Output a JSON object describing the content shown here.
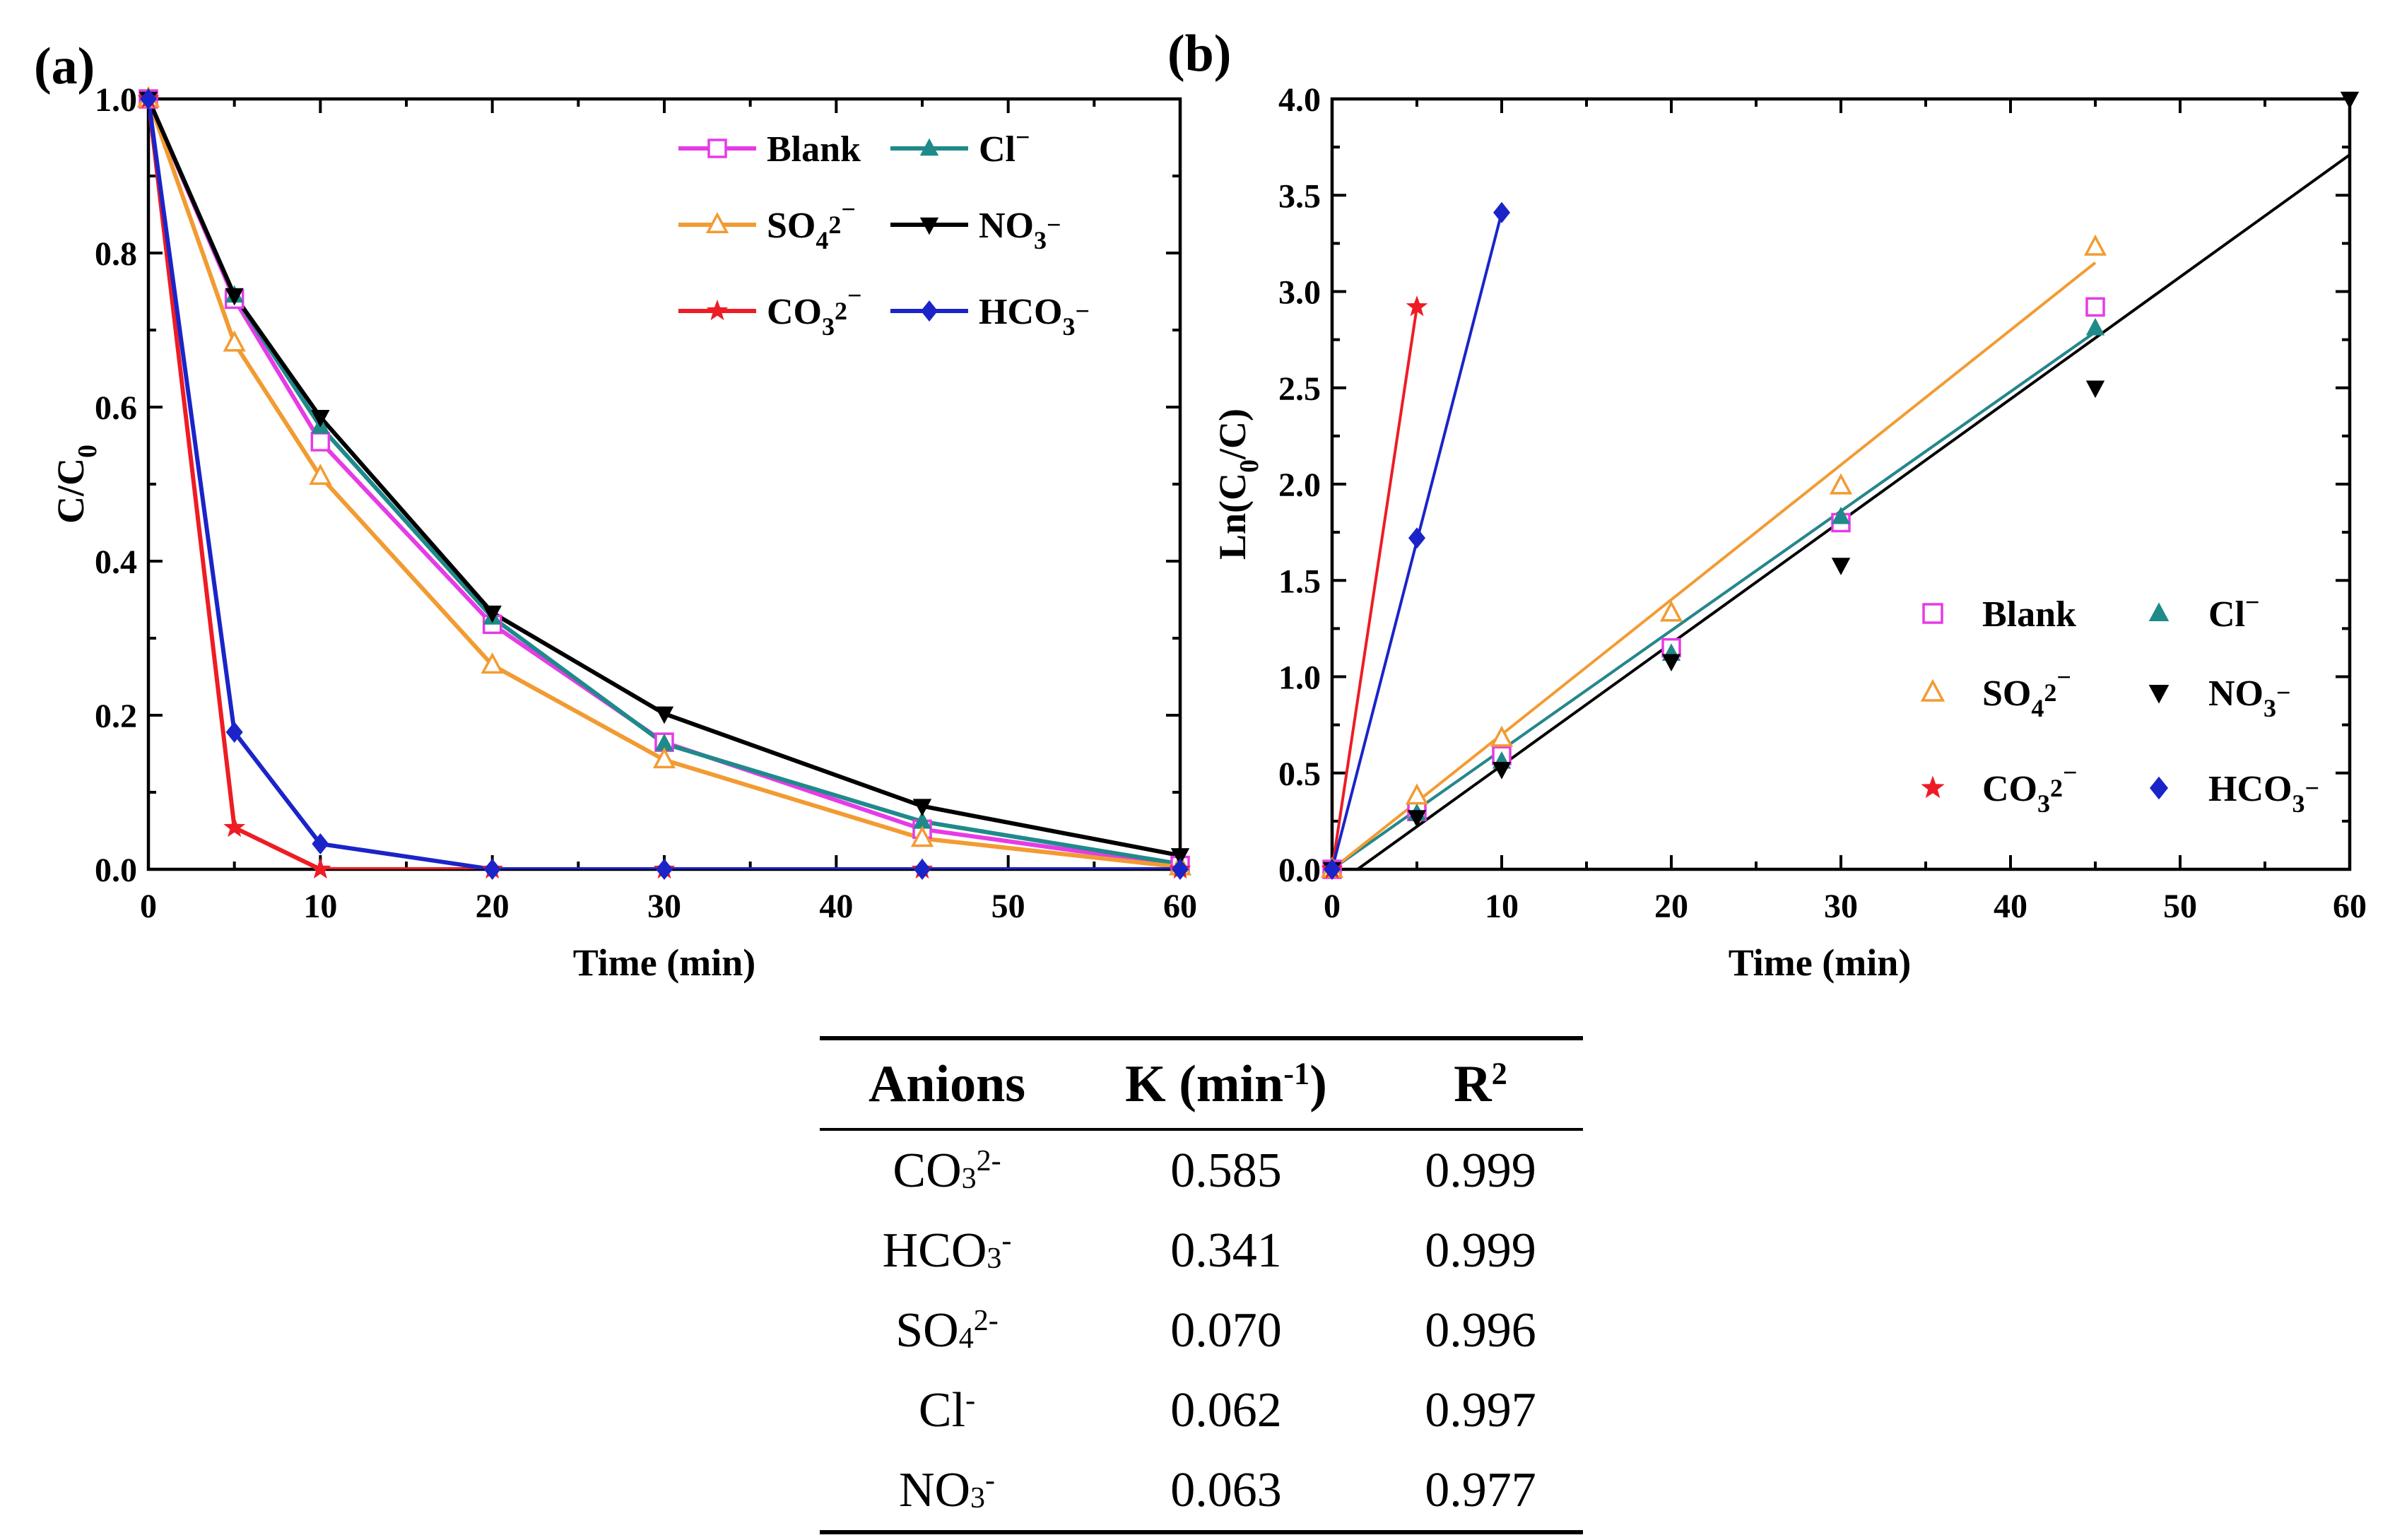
{
  "chart_data": [
    {
      "type": "line",
      "panel_label": "(a)",
      "xlabel": "Time (min)",
      "ylabel": "C/C0",
      "xlim": [
        0,
        60
      ],
      "ylim": [
        0,
        1.0
      ],
      "xticks": [
        "0",
        "10",
        "20",
        "30",
        "40",
        "50",
        "60"
      ],
      "yticks": [
        "0.0",
        "0.2",
        "0.4",
        "0.6",
        "0.8",
        "1.0"
      ],
      "legend_position": "top-right",
      "series": [
        {
          "name": "Blank",
          "color": "#e63be6",
          "marker": "square-open",
          "x": [
            0,
            5,
            10,
            20,
            30,
            45,
            60
          ],
          "y": [
            1.0,
            0.74,
            0.555,
            0.318,
            0.165,
            0.052,
            0.005
          ]
        },
        {
          "name": "Cl⁻",
          "color": "#1f8a8a",
          "marker": "triangle-up",
          "x": [
            0,
            5,
            10,
            20,
            30,
            45,
            60
          ],
          "y": [
            1.0,
            0.745,
            0.575,
            0.327,
            0.163,
            0.062,
            0.007
          ]
        },
        {
          "name": "SO₄²⁻",
          "color": "#f29b32",
          "marker": "triangle-up-open",
          "x": [
            0,
            5,
            10,
            20,
            30,
            45,
            60
          ],
          "y": [
            1.0,
            0.683,
            0.51,
            0.265,
            0.142,
            0.04,
            0.003
          ]
        },
        {
          "name": "NO₃⁻",
          "color": "#000000",
          "marker": "triangle-down",
          "x": [
            0,
            5,
            10,
            20,
            30,
            45,
            60
          ],
          "y": [
            1.0,
            0.745,
            0.587,
            0.333,
            0.202,
            0.082,
            0.018
          ]
        },
        {
          "name": "CO₃²⁻",
          "color": "#ee1c24",
          "marker": "star",
          "x": [
            0,
            5,
            10,
            20,
            30,
            45,
            60
          ],
          "y": [
            1.0,
            0.054,
            0.0,
            0.0,
            0.0,
            0.0,
            0.0
          ]
        },
        {
          "name": "HCO₃⁻",
          "color": "#1a24c8",
          "marker": "diamond",
          "x": [
            0,
            5,
            10,
            20,
            30,
            45,
            60
          ],
          "y": [
            1.0,
            0.178,
            0.033,
            0.0,
            0.0,
            0.0,
            0.0
          ]
        }
      ]
    },
    {
      "type": "scatter",
      "panel_label": "(b)",
      "xlabel": "Time (min)",
      "ylabel": "Ln(C0/C)",
      "xlim": [
        0,
        60
      ],
      "ylim": [
        0,
        4.0
      ],
      "xticks": [
        "0",
        "10",
        "20",
        "30",
        "40",
        "50",
        "60"
      ],
      "yticks": [
        "0.0",
        "0.5",
        "1.0",
        "1.5",
        "2.0",
        "2.5",
        "3.0",
        "3.5",
        "4.0"
      ],
      "legend_position": "bottom-right",
      "series": [
        {
          "name": "Blank",
          "color": "#e63be6",
          "marker": "square-open",
          "x": [
            0,
            5,
            10,
            20,
            30,
            45
          ],
          "y": [
            0,
            0.3,
            0.59,
            1.15,
            1.8,
            2.92
          ]
        },
        {
          "name": "Cl⁻",
          "color": "#1f8a8a",
          "marker": "triangle-up",
          "x": [
            0,
            5,
            10,
            20,
            30,
            45
          ],
          "y": [
            0,
            0.29,
            0.56,
            1.12,
            1.83,
            2.81
          ]
        },
        {
          "name": "SO₄²⁻",
          "color": "#f29b32",
          "marker": "triangle-up-open",
          "x": [
            0,
            5,
            10,
            20,
            30,
            45
          ],
          "y": [
            0,
            0.38,
            0.68,
            1.33,
            1.99,
            3.23
          ]
        },
        {
          "name": "NO₃⁻",
          "color": "#000000",
          "marker": "triangle-down",
          "x": [
            0,
            5,
            10,
            20,
            30,
            45,
            60
          ],
          "y": [
            0,
            0.27,
            0.52,
            1.08,
            1.58,
            2.5,
            4.0
          ]
        },
        {
          "name": "CO₃²⁻",
          "color": "#ee1c24",
          "marker": "star",
          "x": [
            0,
            5
          ],
          "y": [
            0,
            2.92
          ]
        },
        {
          "name": "HCO₃⁻",
          "color": "#1a24c8",
          "marker": "diamond",
          "x": [
            0,
            5,
            10
          ],
          "y": [
            0,
            1.72,
            3.41
          ]
        }
      ],
      "fits": [
        {
          "series": "Blank",
          "color": "#e63be6",
          "x": [
            0,
            45
          ],
          "y": [
            0,
            2.79
          ]
        },
        {
          "series": "Cl⁻",
          "color": "#1f8a8a",
          "x": [
            0,
            45
          ],
          "y": [
            0,
            2.79
          ]
        },
        {
          "series": "SO₄²⁻",
          "color": "#f29b32",
          "x": [
            0,
            45
          ],
          "y": [
            0,
            3.15
          ]
        },
        {
          "series": "NO₃⁻",
          "color": "#000000",
          "x": [
            1.5,
            60
          ],
          "y": [
            0,
            3.71
          ]
        },
        {
          "series": "CO₃²⁻",
          "color": "#ee1c24",
          "x": [
            0,
            5
          ],
          "y": [
            0,
            2.92
          ]
        },
        {
          "series": "HCO₃⁻",
          "color": "#1a24c8",
          "x": [
            0,
            10
          ],
          "y": [
            0,
            3.41
          ]
        }
      ]
    },
    {
      "type": "table",
      "headers": [
        "Anions",
        "K (min⁻¹)",
        "R²"
      ],
      "rows": [
        [
          "CO₃²⁻",
          "0.585",
          "0.999"
        ],
        [
          "HCO₃⁻",
          "0.341",
          "0.999"
        ],
        [
          "SO₄²⁻",
          "0.070",
          "0.996"
        ],
        [
          "Cl⁻",
          "0.062",
          "0.997"
        ],
        [
          "NO₃⁻",
          "0.063",
          "0.977"
        ]
      ]
    }
  ]
}
